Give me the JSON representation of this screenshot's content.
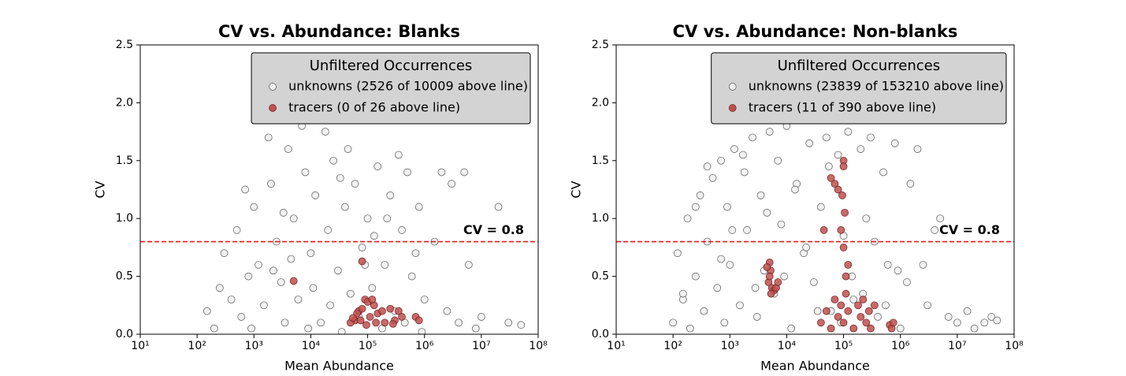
{
  "chart_data": [
    {
      "type": "scatter",
      "title": "CV vs. Abundance: Blanks",
      "xlabel": "Mean Abundance",
      "ylabel": "CV",
      "xscale": "log",
      "xlim": [
        10,
        100000000
      ],
      "ylim": [
        0,
        2.5
      ],
      "xticks": [
        {
          "value": 10,
          "label": "10¹"
        },
        {
          "value": 100,
          "label": "10²"
        },
        {
          "value": 1000,
          "label": "10³"
        },
        {
          "value": 10000,
          "label": "10⁴"
        },
        {
          "value": 100000,
          "label": "10⁵"
        },
        {
          "value": 1000000,
          "label": "10⁶"
        },
        {
          "value": 10000000,
          "label": "10⁷"
        },
        {
          "value": 100000000,
          "label": "10⁸"
        }
      ],
      "yticks": [
        {
          "value": 0,
          "label": "0.0"
        },
        0.5,
        {
          "value": 1,
          "label": "1.0"
        },
        1.5,
        {
          "value": 2,
          "label": "2.0"
        },
        2.5
      ],
      "threshold": {
        "value": 0.8,
        "label": "CV = 0.8",
        "color": "#e41a1c"
      },
      "legend": {
        "title": "Unfiltered Occurrences",
        "position": "upper right"
      },
      "series": [
        {
          "name": "unknowns (2526 of 10009 above line)",
          "color": "#f0f0f0",
          "edgecolor": "#555555",
          "x": [
            150,
            200,
            250,
            300,
            400,
            500,
            600,
            800,
            1000,
            1200,
            1500,
            2000,
            2500,
            3000,
            4000,
            5000,
            6000,
            8000,
            10000,
            12000,
            15000,
            20000,
            25000,
            30000,
            40000,
            50000,
            60000,
            80000,
            100000,
            120000,
            150000,
            200000,
            250000,
            300000,
            400000,
            500000,
            600000,
            800000,
            1000000,
            1500000,
            2000000,
            2500000,
            3000000,
            4000000,
            5000000,
            8000000,
            10000000,
            20000000,
            30000000,
            50000000,
            700,
            900,
            1800,
            3500,
            7000,
            9000,
            18000,
            35000,
            45000,
            70000,
            90000,
            180000,
            350000,
            450000,
            700000,
            900000,
            2200,
            3300,
            4500,
            11000,
            22000,
            33000,
            130000,
            220000,
            6000000
          ],
          "values": [
            0.2,
            0.05,
            0.4,
            0.7,
            0.3,
            0.9,
            0.15,
            0.5,
            1.1,
            0.6,
            0.25,
            1.3,
            0.8,
            0.45,
            1.6,
            1.0,
            0.3,
            1.4,
            0.7,
            1.2,
            0.1,
            0.9,
            1.5,
            0.55,
            1.1,
            0.35,
            1.3,
            0.75,
            1.0,
            0.4,
            1.45,
            0.6,
            1.2,
            0.2,
            0.9,
            1.4,
            0.5,
            1.1,
            0.3,
            0.8,
            1.4,
            0.2,
            1.3,
            0.1,
            1.4,
            0.05,
            0.15,
            1.1,
            0.1,
            0.08,
            1.25,
            0.05,
            1.7,
            0.1,
            1.8,
            0.05,
            1.75,
            0.02,
            1.6,
            0.15,
            0.6,
            0.05,
            1.55,
            0.1,
            0.7,
            0.02,
            0.55,
            1.05,
            0.65,
            0.4,
            0.25,
            1.35,
            0.85,
            1.0,
            0.6
          ]
        },
        {
          "name": "tracers (0 of 26 above line)",
          "color": "#c0504d",
          "edgecolor": "#6b1f1f",
          "x": [
            5000,
            80000,
            60000,
            50000,
            70000,
            90000,
            100000,
            110000,
            80000,
            130000,
            150000,
            200000,
            250000,
            300000,
            350000,
            400000,
            700000,
            800000,
            120000,
            65000,
            95000,
            140000,
            180000,
            75000,
            280000,
            55000
          ],
          "values": [
            0.46,
            0.63,
            0.12,
            0.1,
            0.2,
            0.3,
            0.28,
            0.15,
            0.22,
            0.25,
            0.18,
            0.1,
            0.22,
            0.12,
            0.2,
            0.15,
            0.15,
            0.12,
            0.3,
            0.18,
            0.08,
            0.1,
            0.2,
            0.12,
            0.09,
            0.14
          ]
        }
      ]
    },
    {
      "type": "scatter",
      "title": "CV vs. Abundance: Non-blanks",
      "xlabel": "Mean Abundance",
      "ylabel": "CV",
      "xscale": "log",
      "xlim": [
        10,
        100000000
      ],
      "ylim": [
        0,
        2.5
      ],
      "xticks": [
        {
          "value": 10,
          "label": "10¹"
        },
        {
          "value": 100,
          "label": "10²"
        },
        {
          "value": 1000,
          "label": "10³"
        },
        {
          "value": 10000,
          "label": "10⁴"
        },
        {
          "value": 100000,
          "label": "10⁵"
        },
        {
          "value": 1000000,
          "label": "10⁶"
        },
        {
          "value": 10000000,
          "label": "10⁷"
        },
        {
          "value": 100000000,
          "label": "10⁸"
        }
      ],
      "yticks": [
        {
          "value": 0,
          "label": "0.0"
        },
        0.5,
        {
          "value": 1,
          "label": "1.0"
        },
        1.5,
        {
          "value": 2,
          "label": "2.0"
        },
        2.5
      ],
      "threshold": {
        "value": 0.8,
        "label": "CV = 0.8",
        "color": "#e41a1c"
      },
      "legend": {
        "title": "Unfiltered Occurrences",
        "position": "upper right"
      },
      "series": [
        {
          "name": "unknowns (23839 of 153210 above line)",
          "color": "#f0f0f0",
          "edgecolor": "#555555",
          "x": [
            100,
            120,
            150,
            180,
            200,
            250,
            300,
            350,
            400,
            500,
            600,
            700,
            800,
            900,
            1000,
            1200,
            1500,
            1800,
            2000,
            2500,
            3000,
            3500,
            4000,
            5000,
            6000,
            7000,
            8000,
            10000,
            12000,
            15000,
            20000,
            25000,
            30000,
            40000,
            50000,
            60000,
            80000,
            100000,
            120000,
            150000,
            200000,
            250000,
            300000,
            400000,
            500000,
            600000,
            800000,
            1000000,
            1500000,
            2000000,
            3000000,
            4000000,
            5000000,
            7000000,
            10000000,
            15000000,
            20000000,
            30000000,
            40000000,
            50000000,
            150,
            250,
            400,
            700,
            1100,
            1700,
            2800,
            4500,
            9000,
            14000,
            22000,
            35000,
            55000,
            90000,
            140000,
            220000,
            350000,
            550000,
            900000,
            1300000,
            2500000
          ],
          "values": [
            0.1,
            0.7,
            0.3,
            1.0,
            0.05,
            0.5,
            1.2,
            0.2,
            0.8,
            1.35,
            0.4,
            1.5,
            0.1,
            1.1,
            0.6,
            1.6,
            0.25,
            1.4,
            0.9,
            1.7,
            0.15,
            1.2,
            0.55,
            1.75,
            0.35,
            1.5,
            0.95,
            1.8,
            0.05,
            1.3,
            0.7,
            1.65,
            0.45,
            1.1,
            1.7,
            0.2,
            1.55,
            0.85,
            1.75,
            0.3,
            1.6,
            1.0,
            1.7,
            0.15,
            1.4,
            0.6,
            1.65,
            0.05,
            1.3,
            1.6,
            0.25,
            0.9,
            1.0,
            0.15,
            0.1,
            0.2,
            0.05,
            0.1,
            0.15,
            0.12,
            0.35,
            1.1,
            1.45,
            0.65,
            0.9,
            1.55,
            0.4,
            1.05,
            0.5,
            1.25,
            0.75,
            0.2,
            1.45,
            0.1,
            0.5,
            0.35,
            0.8,
            0.25,
            0.55,
            0.45,
            0.6
          ]
        },
        {
          "name": "tracers (11 of 390 above line)",
          "color": "#c0504d",
          "edgecolor": "#6b1f1f",
          "x": [
            5000,
            5200,
            4800,
            5500,
            6000,
            5000,
            4500,
            5300,
            6500,
            7000,
            40000,
            50000,
            60000,
            70000,
            80000,
            90000,
            100000,
            110000,
            120000,
            150000,
            180000,
            200000,
            220000,
            250000,
            280000,
            300000,
            350000,
            650000,
            700000,
            750000,
            100000,
            100000,
            95000,
            105000,
            90000,
            100000,
            60000,
            70000,
            80000,
            45000,
            120000,
            110000
          ],
          "values": [
            0.62,
            0.55,
            0.45,
            0.4,
            0.38,
            0.5,
            0.58,
            0.35,
            0.4,
            0.45,
            0.1,
            0.2,
            0.05,
            0.3,
            0.15,
            0.25,
            0.1,
            0.35,
            0.2,
            0.05,
            0.25,
            0.15,
            0.3,
            0.1,
            0.2,
            0.05,
            0.25,
            0.08,
            0.05,
            0.1,
            1.5,
            1.45,
            1.2,
            1.05,
            0.9,
            0.75,
            1.35,
            1.3,
            1.25,
            0.9,
            0.6,
            0.5
          ]
        }
      ]
    }
  ]
}
